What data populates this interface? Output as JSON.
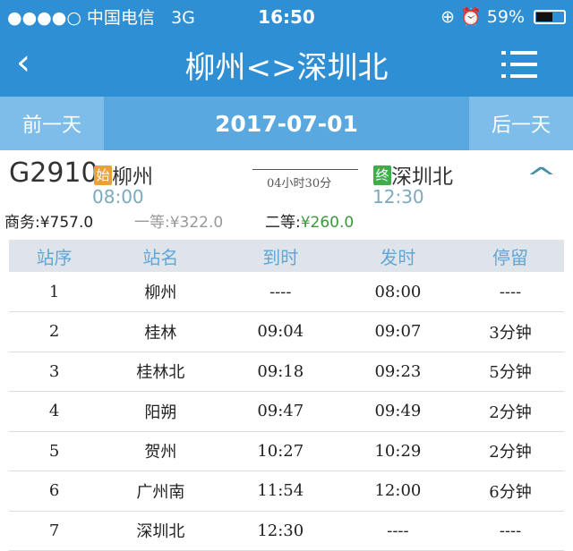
{
  "status": {
    "carrier": "●●●●○ 中国电信",
    "network": "3G",
    "time": "16:50",
    "battery": "59%",
    "battery_level": 0.59
  },
  "nav": {
    "title": "柳州<>深圳北",
    "back_icon": "chevron-left-icon",
    "menu_icon": "list-icon"
  },
  "datebar": {
    "prev": "前一天",
    "date": "2017-07-01",
    "next": "后一天"
  },
  "train": {
    "number": "G2910",
    "start_badge": "始",
    "from": "柳州",
    "depart": "08:00",
    "duration": "04小时30分",
    "end_badge": "终",
    "to": "深圳北",
    "arrive": "12:30",
    "prices": [
      {
        "label": "商务:",
        "value": "¥757.0"
      },
      {
        "label": "一等:",
        "value": "¥322.0"
      },
      {
        "label": "二等:",
        "value": "¥260.0"
      }
    ],
    "colors": {
      "start_badge": "#e9a13b",
      "end_badge": "#3fae49",
      "time": "#7aaabf",
      "second_price": "#3a9a3a"
    }
  },
  "table": {
    "headers": [
      "站序",
      "站名",
      "到时",
      "发时",
      "停留"
    ],
    "rows": [
      [
        "1",
        "柳州",
        "----",
        "08:00",
        "----"
      ],
      [
        "2",
        "桂林",
        "09:04",
        "09:07",
        "3分钟"
      ],
      [
        "3",
        "桂林北",
        "09:18",
        "09:23",
        "5分钟"
      ],
      [
        "4",
        "阳朔",
        "09:47",
        "09:49",
        "2分钟"
      ],
      [
        "5",
        "贺州",
        "10:27",
        "10:29",
        "2分钟"
      ],
      [
        "6",
        "广州南",
        "11:54",
        "12:00",
        "6分钟"
      ],
      [
        "7",
        "深圳北",
        "12:30",
        "----",
        "----"
      ]
    ]
  }
}
